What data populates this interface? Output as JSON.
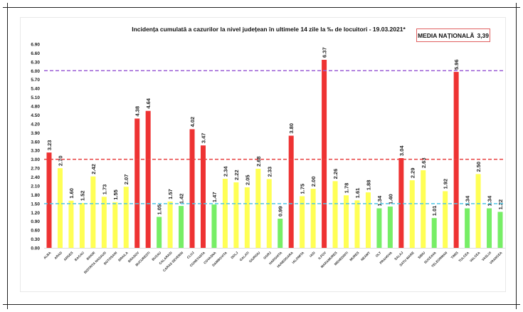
{
  "chart_data": {
    "type": "bar",
    "title": "Incidența cumulată a cazurilor la nivel județean în ultimele 14 zile la ‰ de locuitori - 19.03.2021*",
    "national_average_label": "MEDIA NAȚIONALĂ",
    "national_average_value": "3,39",
    "ylim": [
      0,
      6.9
    ],
    "ytick_step": 0.3,
    "grid": false,
    "reference_lines": [
      {
        "value": 6.0,
        "color": "#9b5fd6"
      },
      {
        "value": 3.0,
        "color": "#e84040"
      },
      {
        "value": 1.5,
        "color": "#4fc8e8"
      }
    ],
    "colors": {
      "high": "#ee3333",
      "medium": "#ffff55",
      "low": "#77ee66"
    },
    "categories": [
      "ALBA",
      "ARAD",
      "ARGES",
      "BACAU",
      "BIHOR",
      "BISTRITA NASAUD",
      "BOTOSANI",
      "BRAILA",
      "BRASOV",
      "BUCURESTI",
      "BUZAU",
      "CALARASI",
      "CARAS SEVERIN",
      "CLUJ",
      "CONSTANTA",
      "COVASNA",
      "DAMBOVITA",
      "DOLJ",
      "GALATI",
      "GIURGIU",
      "GORJ",
      "HARGHITA",
      "HUNEDOARA",
      "IALOMITA",
      "IASI",
      "ILFOV",
      "MARAMURES",
      "MEHEDINTI",
      "MURES",
      "NEAMT",
      "OLT",
      "PRAHOVA",
      "SALAJ",
      "SATU MARE",
      "SIBIU",
      "SUCEAVA",
      "TELEORMAN",
      "TIMIS",
      "TULCEA",
      "VALCEA",
      "VASLUI",
      "VRANCEA"
    ],
    "values": [
      3.23,
      2.7,
      1.6,
      1.52,
      2.42,
      1.73,
      1.55,
      2.07,
      4.38,
      4.64,
      1.05,
      1.57,
      1.42,
      4.02,
      3.47,
      1.47,
      2.34,
      2.22,
      2.05,
      2.68,
      2.33,
      0.99,
      3.8,
      1.75,
      2.0,
      6.37,
      2.26,
      1.78,
      1.61,
      1.88,
      1.34,
      1.4,
      3.04,
      2.29,
      2.63,
      1.01,
      1.92,
      5.96,
      1.34,
      2.5,
      1.34,
      1.22
    ]
  }
}
